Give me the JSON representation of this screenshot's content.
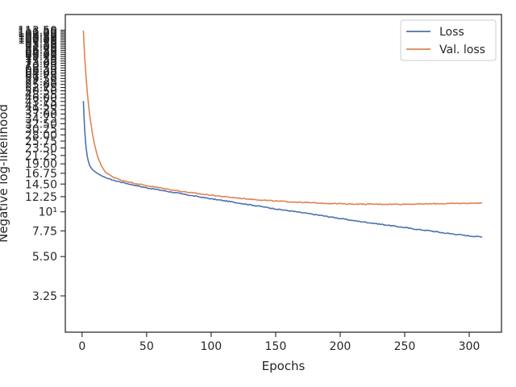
{
  "chart_data": {
    "type": "line",
    "title": "",
    "xlabel": "Epochs",
    "ylabel": "Negative log-likelihood",
    "xlim": [
      -13,
      325
    ],
    "ylim": [
      2.0,
      140.0
    ],
    "yscale": "log",
    "grid": false,
    "legend_position": "top-right",
    "x_ticks": [
      0,
      50,
      100,
      150,
      200,
      250,
      300
    ],
    "y_ticks": [
      3.25,
      5.5,
      7.75,
      10,
      12.25,
      14.5,
      16.75,
      19.0,
      21.25,
      23.5,
      25.75,
      28.0,
      30.25,
      32.5,
      34.75,
      37.0,
      39.25,
      41.5,
      43.75,
      46.0,
      48.25,
      50.5,
      52.75,
      55.0,
      57.25,
      59.5,
      61.75,
      64.0,
      66.25,
      68.5,
      70.75,
      73.0,
      75.25,
      77.5,
      79.75,
      82.0,
      84.25,
      86.5,
      88.75,
      91.0,
      93.25,
      95.5,
      97.75,
      100.0,
      102.25,
      104.5,
      106.75,
      109.0,
      111.25,
      113.5
    ],
    "y_tick_labels": [
      "3.25",
      "5.50",
      "7.75",
      "10¹",
      "12.25",
      "14.50",
      "16.75",
      "19.00",
      "21.25",
      "23.50",
      "25.75",
      "28.00",
      "30.25",
      "32.50",
      "34.75",
      "37.00",
      "39.25",
      "41.50",
      "43.75",
      "46.00",
      "48.25",
      "50.50",
      "52.75",
      "55.00",
      "57.25",
      "59.50",
      "61.75",
      "64.00",
      "66.25",
      "68.50",
      "70.75",
      "73.00",
      "75.25",
      "77.50",
      "79.75",
      "82.00",
      "84.25",
      "86.50",
      "88.75",
      "91.00",
      "93.25",
      "95.50",
      "97.75",
      "100.00",
      "102.25",
      "104.50",
      "106.75",
      "109.00",
      "111.25",
      "113.50"
    ],
    "series": [
      {
        "name": "Loss",
        "color": "#4c72b0",
        "x": [
          1,
          2,
          3,
          4,
          5,
          6,
          8,
          10,
          12,
          15,
          20,
          25,
          30,
          40,
          50,
          60,
          70,
          80,
          90,
          100,
          110,
          120,
          130,
          140,
          150,
          160,
          170,
          180,
          190,
          200,
          210,
          220,
          230,
          240,
          250,
          260,
          270,
          280,
          290,
          300,
          310
        ],
        "y": [
          44.0,
          30.0,
          24.0,
          21.0,
          19.5,
          18.5,
          17.6,
          17.1,
          16.7,
          16.2,
          15.6,
          15.2,
          14.9,
          14.3,
          13.8,
          13.4,
          13.0,
          12.6,
          12.25,
          11.9,
          11.6,
          11.3,
          11.0,
          10.7,
          10.4,
          10.15,
          9.9,
          9.65,
          9.4,
          9.15,
          8.9,
          8.7,
          8.5,
          8.3,
          8.1,
          7.9,
          7.75,
          7.55,
          7.4,
          7.25,
          7.15
        ]
      },
      {
        "name": "Val. loss",
        "color": "#dd8452",
        "x": [
          1,
          2,
          3,
          4,
          5,
          6,
          8,
          10,
          12,
          15,
          18,
          20,
          25,
          30,
          40,
          50,
          60,
          70,
          80,
          90,
          100,
          110,
          120,
          130,
          140,
          150,
          160,
          170,
          180,
          190,
          200,
          210,
          220,
          230,
          240,
          250,
          260,
          270,
          280,
          290,
          300,
          310
        ],
        "y": [
          113.0,
          80.0,
          62.0,
          50.0,
          42.0,
          36.0,
          28.5,
          24.0,
          21.0,
          18.5,
          17.0,
          16.6,
          15.8,
          15.3,
          14.7,
          14.2,
          13.8,
          13.4,
          13.05,
          12.75,
          12.5,
          12.25,
          12.05,
          11.85,
          11.7,
          11.55,
          11.45,
          11.35,
          11.27,
          11.2,
          11.15,
          11.1,
          11.08,
          11.07,
          11.07,
          11.08,
          11.1,
          11.13,
          11.16,
          11.19,
          11.22,
          11.25
        ]
      }
    ]
  }
}
